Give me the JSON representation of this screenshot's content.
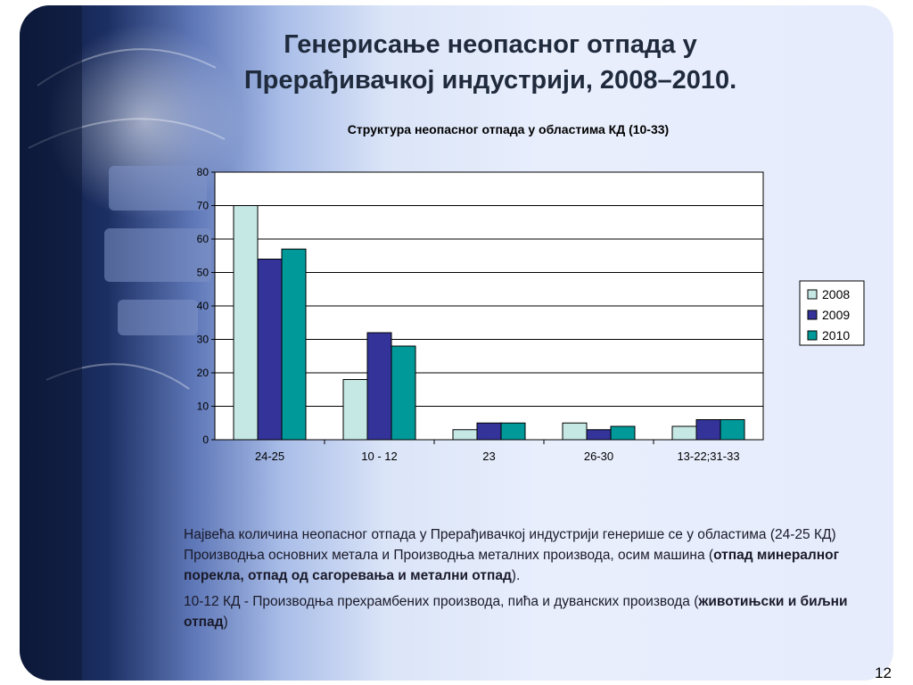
{
  "slide": {
    "title_line1": "Генерисање неопасног отпада у",
    "title_line2": "Прерађивачкој индустрији, 2008–2010.",
    "page_number": "12"
  },
  "chart_data": {
    "type": "bar",
    "title": "Структура неопасног отпада у областима КД (10-33)",
    "categories": [
      "24-25",
      "10 - 12",
      "23",
      "26-30",
      "13-22;31-33"
    ],
    "series": [
      {
        "name": "2008",
        "values": [
          70,
          18,
          3,
          5,
          4
        ],
        "color": "#c5e8e4"
      },
      {
        "name": "2009",
        "values": [
          54,
          32,
          5,
          3,
          6
        ],
        "color": "#333399"
      },
      {
        "name": "2010",
        "values": [
          57,
          28,
          5,
          4,
          6
        ],
        "color": "#009999"
      }
    ],
    "ylim": [
      0,
      80
    ],
    "yticks": [
      "0",
      "10",
      "20",
      "30",
      "40",
      "50",
      "60",
      "70",
      "80"
    ],
    "grid": true,
    "legend_position": "right"
  },
  "text": {
    "p1_part1": "Највећа количина неопасног отпада у Прерађивачкој индустрији  генерише се у областима (24-25 КД) Производња основних метала и Производња металних производа, осим машина (",
    "p1_bold": "отпад минералног порекла, отпад од сагоревања и метални отпад",
    "p1_end": ").",
    "p2_part1": "10-12 КД - Производња прехрамбених производа, пића и дуванских производа (",
    "p2_bold": "животињски и биљни отпад",
    "p2_end": ")"
  }
}
